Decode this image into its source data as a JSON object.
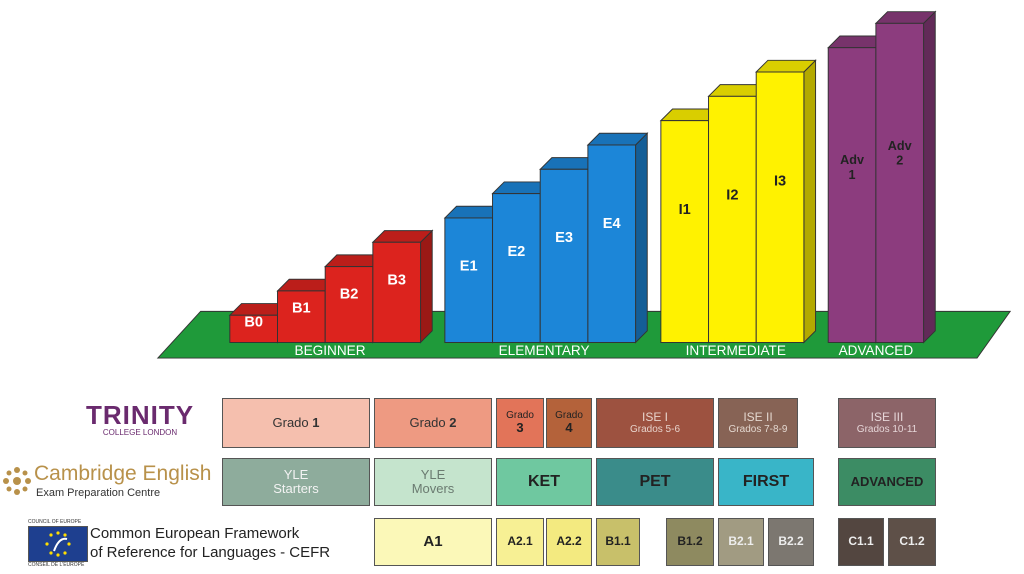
{
  "colors": {
    "ground": "#1f9a3a",
    "beginner": "#dc231e",
    "elementary": "#1c86d8",
    "intermediate": "#fff200",
    "advanced": "#8c3c7e"
  },
  "stages": {
    "beginner": {
      "label": "BEGINNER",
      "blocks": [
        {
          "label": "B0",
          "level": 1
        },
        {
          "label": "B1",
          "level": 2
        },
        {
          "label": "B2",
          "level": 3
        },
        {
          "label": "B3",
          "level": 4
        }
      ]
    },
    "elementary": {
      "label": "ELEMENTARY",
      "blocks": [
        {
          "label": "E1",
          "level": 5
        },
        {
          "label": "E2",
          "level": 6
        },
        {
          "label": "E3",
          "level": 7
        },
        {
          "label": "E4",
          "level": 8
        }
      ]
    },
    "intermediate": {
      "label": "INTERMEDIATE",
      "blocks": [
        {
          "label": "I1",
          "level": 9
        },
        {
          "label": "I2",
          "level": 10
        },
        {
          "label": "I3",
          "level": 11
        }
      ]
    },
    "advanced": {
      "label": "ADVANCED",
      "blocks": [
        {
          "label": "Adv\n1",
          "level": 12
        },
        {
          "label": "Adv\n2",
          "level": 13
        }
      ]
    }
  },
  "logos": {
    "trinity": {
      "name": "TRINITY",
      "sub": "COLLEGE LONDON"
    },
    "cambridge": {
      "name": "Cambridge English",
      "sub": "Exam Preparation Centre"
    },
    "cefr": {
      "line1": "Common European Framework",
      "line2": "of Reference for Languages - CEFR",
      "badge_top": "COUNCIL OF EUROPE",
      "badge_bottom": "CONSEIL DE L'EUROPE"
    }
  },
  "trinity_row": [
    {
      "text": "Grado ",
      "num": "1",
      "bg": "#f5bfae"
    },
    {
      "text": "Grado ",
      "num": "2",
      "bg": "#ee9a82"
    },
    {
      "text": "Grado",
      "num": "3",
      "bg": "#e27459"
    },
    {
      "text": "Grado",
      "num": "4",
      "bg": "#b4623a"
    },
    {
      "text": "ISE I",
      "sub": "Grados 5-6",
      "bg": "#9d5240"
    },
    {
      "text": "ISE II",
      "sub": "Grados 7-8-9",
      "bg": "#876355"
    },
    {
      "text": "ISE III",
      "sub": "Grados 10-11",
      "bg": "#8c6468"
    }
  ],
  "cambridge_row": [
    {
      "text": "YLE",
      "sub": "Starters",
      "bg": "#8eac9c"
    },
    {
      "text": "YLE",
      "sub": "Movers",
      "bg": "#c5e4cd"
    },
    {
      "text": "KET",
      "bg": "#6fc8a0"
    },
    {
      "text": "PET",
      "bg": "#3a8c8a"
    },
    {
      "text": "FIRST",
      "bg": "#39b5c8"
    },
    {
      "text": "ADVANCED",
      "bg": "#3c8c64"
    }
  ],
  "cefr_row": [
    {
      "text": "A1",
      "bg": "#fbf8b8"
    },
    {
      "text": "A2.1",
      "bg": "#f7f094"
    },
    {
      "text": "A2.2",
      "bg": "#f3ea80"
    },
    {
      "text": "B1.1",
      "bg": "#c8c06a"
    },
    {
      "text": "B1.2",
      "bg": "#8e8a60"
    },
    {
      "text": "B2.1",
      "bg": "#a19b82"
    },
    {
      "text": "B2.2",
      "bg": "#7c7770"
    },
    {
      "text": "C1.1",
      "bg": "#534640"
    },
    {
      "text": "C1.2",
      "bg": "#5e5048"
    }
  ]
}
